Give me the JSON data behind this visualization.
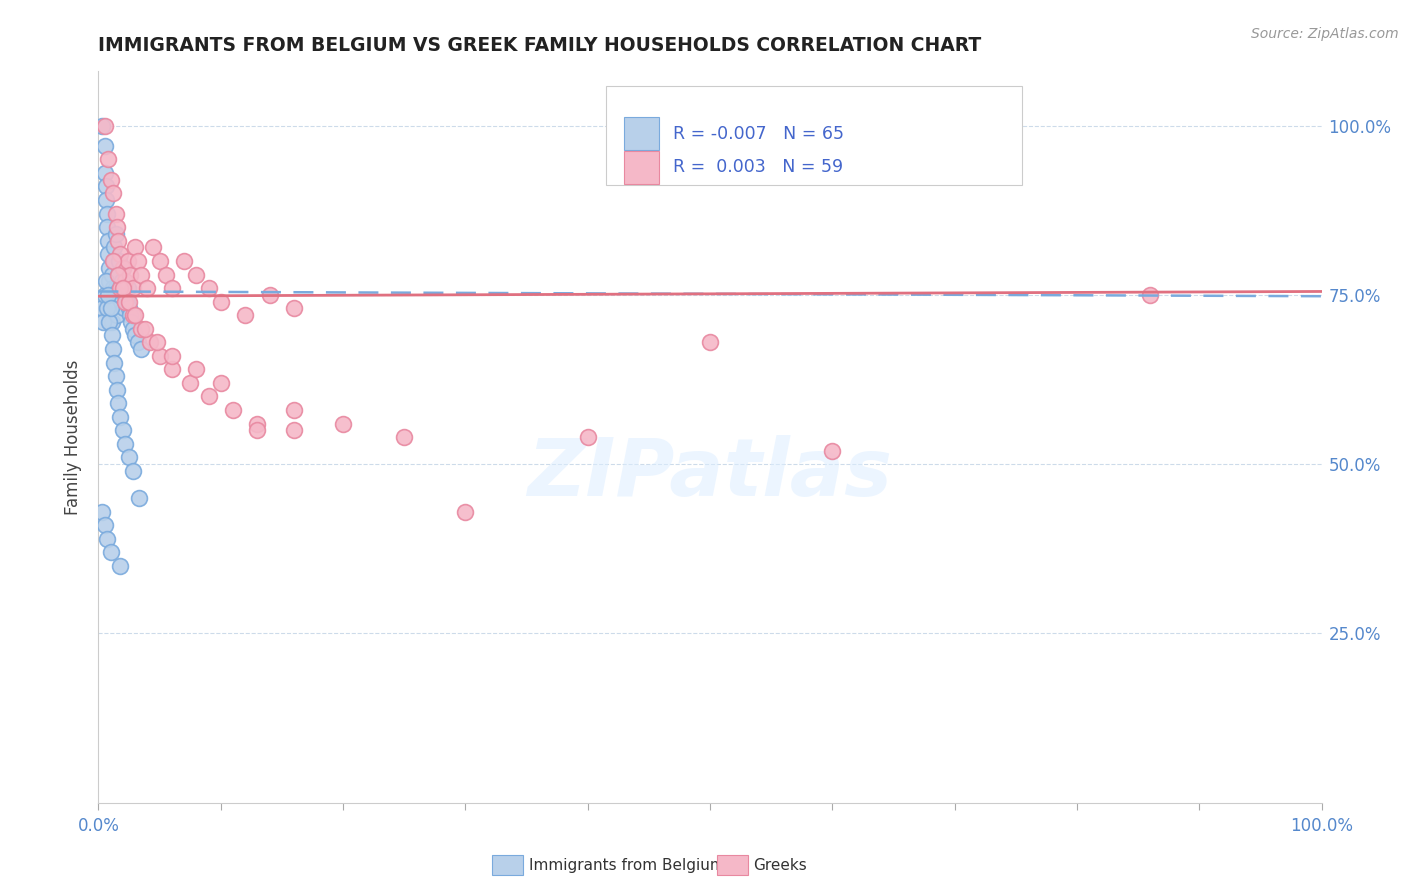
{
  "title": "IMMIGRANTS FROM BELGIUM VS GREEK FAMILY HOUSEHOLDS CORRELATION CHART",
  "source_text": "Source: ZipAtlas.com",
  "ylabel": "Family Households",
  "xlim": [
    0.0,
    1.0
  ],
  "ylim": [
    0.0,
    1.08
  ],
  "ytick_vals": [
    0.25,
    0.5,
    0.75,
    1.0
  ],
  "ytick_labels": [
    "25.0%",
    "50.0%",
    "75.0%",
    "100.0%"
  ],
  "xtick_vals": [
    0.0,
    1.0
  ],
  "xtick_labels": [
    "0.0%",
    "100.0%"
  ],
  "legend_r_blue": "-0.007",
  "legend_n_blue": "65",
  "legend_r_pink": "0.003",
  "legend_n_pink": "59",
  "blue_fill": "#b8d0ea",
  "blue_edge": "#7aaadd",
  "pink_fill": "#f5b8c8",
  "pink_edge": "#e888a0",
  "trend_blue_color": "#7aaadd",
  "trend_pink_color": "#e07080",
  "watermark": "ZIPatlas",
  "grid_color": "#c8d8e8",
  "blue_x": [
    0.003,
    0.005,
    0.005,
    0.006,
    0.006,
    0.007,
    0.007,
    0.008,
    0.008,
    0.009,
    0.009,
    0.01,
    0.01,
    0.011,
    0.011,
    0.012,
    0.012,
    0.013,
    0.013,
    0.014,
    0.014,
    0.015,
    0.015,
    0.016,
    0.016,
    0.017,
    0.018,
    0.019,
    0.02,
    0.021,
    0.022,
    0.023,
    0.024,
    0.025,
    0.026,
    0.027,
    0.028,
    0.03,
    0.032,
    0.035,
    0.003,
    0.004,
    0.005,
    0.006,
    0.007,
    0.008,
    0.009,
    0.01,
    0.011,
    0.012,
    0.013,
    0.014,
    0.015,
    0.016,
    0.018,
    0.02,
    0.022,
    0.025,
    0.028,
    0.033,
    0.003,
    0.005,
    0.007,
    0.01,
    0.018
  ],
  "blue_y": [
    1.0,
    0.97,
    0.93,
    0.91,
    0.89,
    0.87,
    0.85,
    0.83,
    0.81,
    0.79,
    0.77,
    0.75,
    0.73,
    0.71,
    0.78,
    0.76,
    0.74,
    0.8,
    0.82,
    0.84,
    0.76,
    0.74,
    0.72,
    0.78,
    0.76,
    0.8,
    0.75,
    0.77,
    0.79,
    0.73,
    0.75,
    0.74,
    0.76,
    0.73,
    0.72,
    0.71,
    0.7,
    0.69,
    0.68,
    0.67,
    0.73,
    0.71,
    0.75,
    0.77,
    0.73,
    0.75,
    0.71,
    0.73,
    0.69,
    0.67,
    0.65,
    0.63,
    0.61,
    0.59,
    0.57,
    0.55,
    0.53,
    0.51,
    0.49,
    0.45,
    0.43,
    0.41,
    0.39,
    0.37,
    0.35
  ],
  "pink_x": [
    0.005,
    0.008,
    0.01,
    0.012,
    0.014,
    0.015,
    0.016,
    0.018,
    0.02,
    0.022,
    0.024,
    0.026,
    0.028,
    0.03,
    0.032,
    0.035,
    0.04,
    0.045,
    0.05,
    0.055,
    0.06,
    0.07,
    0.08,
    0.09,
    0.1,
    0.12,
    0.14,
    0.16,
    0.018,
    0.022,
    0.028,
    0.035,
    0.042,
    0.05,
    0.06,
    0.075,
    0.09,
    0.11,
    0.13,
    0.16,
    0.012,
    0.016,
    0.02,
    0.025,
    0.03,
    0.038,
    0.048,
    0.06,
    0.08,
    0.1,
    0.13,
    0.16,
    0.2,
    0.25,
    0.3,
    0.4,
    0.5,
    0.6,
    0.86
  ],
  "pink_y": [
    1.0,
    0.95,
    0.92,
    0.9,
    0.87,
    0.85,
    0.83,
    0.81,
    0.79,
    0.77,
    0.8,
    0.78,
    0.76,
    0.82,
    0.8,
    0.78,
    0.76,
    0.82,
    0.8,
    0.78,
    0.76,
    0.8,
    0.78,
    0.76,
    0.74,
    0.72,
    0.75,
    0.73,
    0.76,
    0.74,
    0.72,
    0.7,
    0.68,
    0.66,
    0.64,
    0.62,
    0.6,
    0.58,
    0.56,
    0.55,
    0.8,
    0.78,
    0.76,
    0.74,
    0.72,
    0.7,
    0.68,
    0.66,
    0.64,
    0.62,
    0.55,
    0.58,
    0.56,
    0.54,
    0.43,
    0.54,
    0.68,
    0.52,
    0.75
  ]
}
